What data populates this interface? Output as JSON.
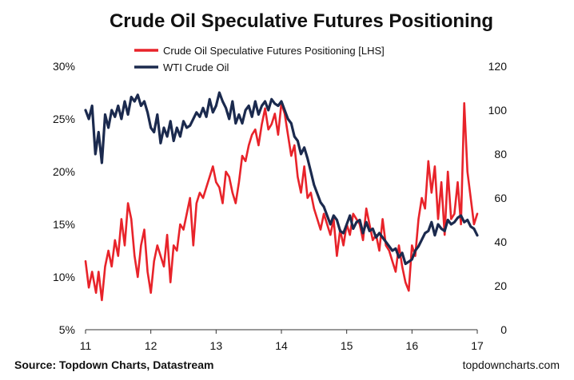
{
  "chart_data": {
    "type": "line",
    "title": "Crude Oil Speculative Futures Positioning",
    "x_ticks": [
      "11",
      "12",
      "13",
      "14",
      "15",
      "16",
      "17"
    ],
    "xlim": [
      2011,
      2017
    ],
    "y_left": {
      "ticks": [
        "5%",
        "10%",
        "15%",
        "20%",
        "25%",
        "30%"
      ],
      "tick_values": [
        5,
        10,
        15,
        20,
        25,
        30
      ],
      "lim": [
        5,
        30
      ]
    },
    "y_right": {
      "ticks": [
        "0",
        "20",
        "40",
        "60",
        "80",
        "100",
        "120"
      ],
      "tick_values": [
        0,
        20,
        40,
        60,
        80,
        100,
        120
      ],
      "lim": [
        0,
        120
      ]
    },
    "grid": false,
    "legend_position": "top-center",
    "series": [
      {
        "name": "Crude Oil Speculative Futures Positioning [LHS]",
        "axis": "left",
        "color": "#e8232a",
        "x": [
          2011.0,
          2011.05,
          2011.1,
          2011.16,
          2011.2,
          2011.25,
          2011.3,
          2011.35,
          2011.4,
          2011.45,
          2011.5,
          2011.55,
          2011.6,
          2011.65,
          2011.7,
          2011.75,
          2011.8,
          2011.85,
          2011.9,
          2011.95,
          2012.0,
          2012.05,
          2012.1,
          2012.15,
          2012.2,
          2012.25,
          2012.3,
          2012.35,
          2012.4,
          2012.45,
          2012.5,
          2012.55,
          2012.6,
          2012.65,
          2012.7,
          2012.75,
          2012.8,
          2012.85,
          2012.9,
          2012.95,
          2013.0,
          2013.05,
          2013.1,
          2013.15,
          2013.2,
          2013.25,
          2013.3,
          2013.35,
          2013.4,
          2013.45,
          2013.5,
          2013.55,
          2013.6,
          2013.65,
          2013.7,
          2013.75,
          2013.8,
          2013.85,
          2013.9,
          2013.95,
          2014.0,
          2014.05,
          2014.1,
          2014.15,
          2014.2,
          2014.25,
          2014.3,
          2014.35,
          2014.4,
          2014.45,
          2014.5,
          2014.55,
          2014.6,
          2014.65,
          2014.7,
          2014.75,
          2014.8,
          2014.85,
          2014.9,
          2014.95,
          2015.0,
          2015.05,
          2015.1,
          2015.15,
          2015.2,
          2015.25,
          2015.3,
          2015.35,
          2015.4,
          2015.45,
          2015.5,
          2015.55,
          2015.6,
          2015.65,
          2015.7,
          2015.75,
          2015.8,
          2015.85,
          2015.9,
          2015.95,
          2016.0,
          2016.05,
          2016.1,
          2016.15,
          2016.2,
          2016.25,
          2016.3,
          2016.35,
          2016.4,
          2016.45,
          2016.5,
          2016.55,
          2016.6,
          2016.65,
          2016.7,
          2016.75,
          2016.8,
          2016.85,
          2016.9,
          2016.95,
          2017.0
        ],
        "values": [
          11.5,
          9.0,
          10.5,
          8.5,
          10.5,
          7.8,
          11.0,
          12.5,
          11.0,
          13.5,
          12.0,
          15.5,
          13.0,
          17.0,
          15.5,
          12.0,
          10.0,
          13.0,
          14.5,
          10.5,
          8.5,
          11.5,
          13.0,
          12.0,
          11.0,
          14.0,
          9.5,
          13.0,
          12.5,
          15.0,
          14.5,
          16.0,
          17.5,
          13.0,
          17.0,
          18.0,
          17.5,
          18.5,
          19.5,
          20.5,
          19.0,
          18.5,
          17.0,
          20.0,
          19.5,
          18.0,
          17.0,
          19.0,
          21.5,
          21.0,
          22.5,
          23.5,
          24.0,
          22.5,
          24.5,
          26.0,
          24.0,
          24.5,
          25.5,
          23.5,
          26.5,
          25.5,
          23.5,
          21.5,
          22.5,
          19.5,
          18.0,
          20.5,
          17.5,
          18.0,
          16.5,
          15.5,
          14.5,
          16.0,
          15.0,
          14.0,
          15.5,
          12.0,
          14.5,
          13.0,
          15.0,
          14.0,
          16.0,
          15.5,
          15.0,
          13.5,
          16.5,
          15.0,
          13.5,
          14.0,
          12.5,
          15.5,
          13.0,
          12.5,
          11.5,
          10.5,
          13.0,
          11.0,
          9.5,
          8.7,
          13.0,
          12.0,
          15.5,
          17.5,
          16.5,
          21.0,
          18.0,
          20.5,
          15.5,
          19.0,
          14.0,
          20.0,
          15.5,
          16.0,
          19.0,
          15.0,
          26.5,
          20.0,
          17.5,
          15.0,
          16.0
        ]
      },
      {
        "name": "WTI Crude Oil",
        "axis": "right",
        "color": "#1b2a4e",
        "x": [
          2011.0,
          2011.05,
          2011.1,
          2011.15,
          2011.2,
          2011.25,
          2011.3,
          2011.35,
          2011.4,
          2011.45,
          2011.5,
          2011.55,
          2011.6,
          2011.65,
          2011.7,
          2011.75,
          2011.8,
          2011.85,
          2011.9,
          2011.95,
          2012.0,
          2012.05,
          2012.1,
          2012.15,
          2012.2,
          2012.25,
          2012.3,
          2012.35,
          2012.4,
          2012.45,
          2012.5,
          2012.55,
          2012.6,
          2012.65,
          2012.7,
          2012.75,
          2012.8,
          2012.85,
          2012.9,
          2012.95,
          2013.0,
          2013.05,
          2013.1,
          2013.15,
          2013.2,
          2013.25,
          2013.3,
          2013.35,
          2013.4,
          2013.45,
          2013.5,
          2013.55,
          2013.6,
          2013.65,
          2013.7,
          2013.75,
          2013.8,
          2013.85,
          2013.9,
          2013.95,
          2014.0,
          2014.05,
          2014.1,
          2014.15,
          2014.2,
          2014.25,
          2014.3,
          2014.35,
          2014.4,
          2014.45,
          2014.5,
          2014.55,
          2014.6,
          2014.65,
          2014.7,
          2014.75,
          2014.8,
          2014.85,
          2014.9,
          2014.95,
          2015.0,
          2015.05,
          2015.1,
          2015.15,
          2015.2,
          2015.25,
          2015.3,
          2015.35,
          2015.4,
          2015.45,
          2015.5,
          2015.55,
          2015.6,
          2015.65,
          2015.7,
          2015.75,
          2015.8,
          2015.85,
          2015.9,
          2015.95,
          2016.0,
          2016.05,
          2016.1,
          2016.15,
          2016.2,
          2016.25,
          2016.3,
          2016.35,
          2016.4,
          2016.45,
          2016.5,
          2016.55,
          2016.6,
          2016.65,
          2016.7,
          2016.75,
          2016.8,
          2016.85,
          2016.9,
          2016.95,
          2017.0
        ],
        "values": [
          100,
          96,
          102,
          80,
          90,
          76,
          98,
          92,
          100,
          97,
          102,
          96,
          104,
          98,
          106,
          104,
          107,
          102,
          104,
          99,
          92,
          90,
          98,
          85,
          92,
          88,
          95,
          86,
          92,
          88,
          95,
          92,
          93,
          96,
          99,
          97,
          101,
          97,
          105,
          99,
          102,
          108,
          104,
          101,
          96,
          104,
          94,
          98,
          94,
          100,
          102,
          97,
          104,
          98,
          102,
          104,
          100,
          105,
          103,
          102,
          104,
          100,
          96,
          94,
          88,
          86,
          80,
          83,
          78,
          72,
          66,
          62,
          58,
          56,
          52,
          48,
          52,
          50,
          45,
          44,
          48,
          52,
          46,
          49,
          50,
          44,
          49,
          45,
          46,
          42,
          44,
          42,
          40,
          38,
          36,
          37,
          33,
          35,
          30,
          31,
          32,
          36,
          38,
          41,
          44,
          45,
          49,
          43,
          48,
          46,
          45,
          50,
          48,
          49,
          51,
          52,
          49,
          50,
          47,
          46,
          43
        ]
      }
    ]
  },
  "footer": {
    "source": "Source: Topdown Charts, Datastream",
    "website": "topdowncharts.com"
  }
}
